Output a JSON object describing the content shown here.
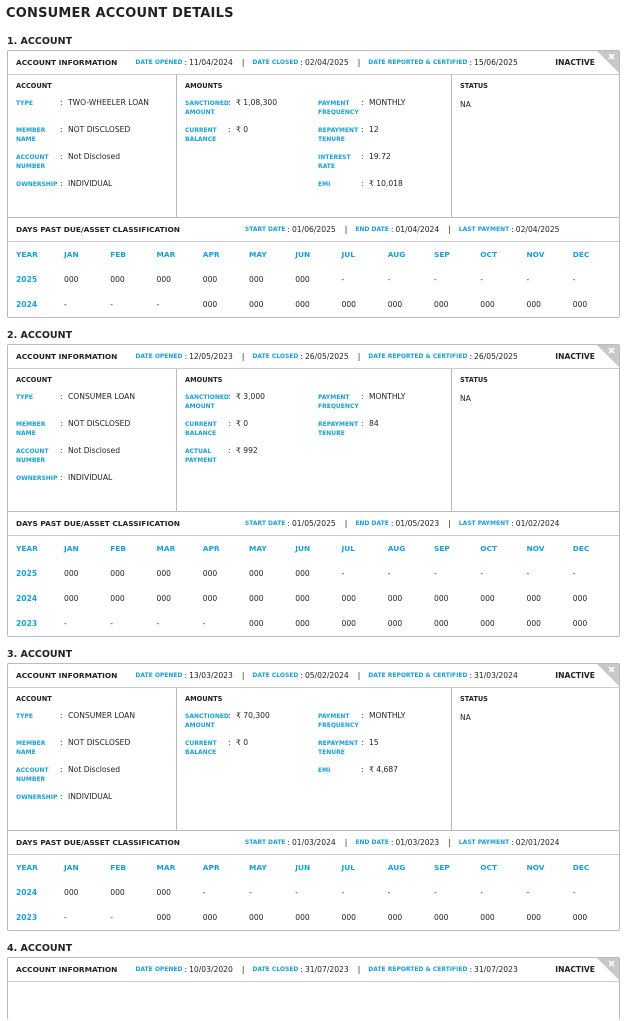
{
  "title": "CONSUMER ACCOUNT DETAILS",
  "separator": ":",
  "divider": "|",
  "dpd_columns": [
    "YEAR",
    "JAN",
    "FEB",
    "MAR",
    "APR",
    "MAY",
    "JUN",
    "JUL",
    "AUG",
    "SEP",
    "OCT",
    "NOV",
    "DEC"
  ],
  "accounts": [
    {
      "heading": "1. ACCOUNT",
      "info": {
        "label": "ACCOUNT INFORMATION",
        "fields": [
          {
            "label": "DATE OPENED",
            "value": "11/04/2024"
          },
          {
            "label": "DATE CLOSED",
            "value": "02/04/2025"
          },
          {
            "label": "DATE REPORTED & CERTIFIED",
            "value": "15/06/2025"
          }
        ],
        "status": "INACTIVE"
      },
      "account": {
        "heading": "ACCOUNT",
        "rows": [
          {
            "label": "TYPE",
            "value": "TWO-WHEELER LOAN"
          },
          {
            "label": "MEMBER NAME",
            "value": "NOT DISCLOSED"
          },
          {
            "label": "ACCOUNT NUMBER",
            "value": "Not Disclosed"
          },
          {
            "label": "OWNERSHIP",
            "value": "INDIVIDUAL"
          }
        ]
      },
      "amounts": {
        "heading": "AMOUNTS",
        "left": [
          {
            "label": "SANCTIONED AMOUNT",
            "value": "₹ 1,08,300"
          },
          {
            "label": "CURRENT BALANCE",
            "value": "₹ 0"
          }
        ],
        "right": [
          {
            "label": "PAYMENT FREQUENCY",
            "value": "MONTHLY"
          },
          {
            "label": "REPAYMENT TENURE",
            "value": "12"
          },
          {
            "label": "INTEREST RATE",
            "value": "19.72"
          },
          {
            "label": "EMI",
            "value": "₹ 10,018"
          }
        ]
      },
      "status": {
        "heading": "STATUS",
        "value": "NA"
      },
      "dpd": {
        "label": "DAYS PAST DUE/ASSET CLASSIFICATION",
        "fields": [
          {
            "label": "START DATE",
            "value": "01/06/2025"
          },
          {
            "label": "END DATE",
            "value": "01/04/2024"
          },
          {
            "label": "LAST PAYMENT",
            "value": "02/04/2025"
          }
        ],
        "rows": [
          [
            "2025",
            "000",
            "000",
            "000",
            "000",
            "000",
            "000",
            "-",
            "-",
            "-",
            "-",
            "-",
            "-"
          ],
          [
            "2024",
            "-",
            "-",
            "-",
            "000",
            "000",
            "000",
            "000",
            "000",
            "000",
            "000",
            "000",
            "000"
          ]
        ]
      }
    },
    {
      "heading": "2. ACCOUNT",
      "info": {
        "label": "ACCOUNT INFORMATION",
        "fields": [
          {
            "label": "DATE OPENED",
            "value": "12/05/2023"
          },
          {
            "label": "DATE CLOSED",
            "value": "26/05/2025"
          },
          {
            "label": "DATE REPORTED & CERTIFIED",
            "value": "26/05/2025"
          }
        ],
        "status": "INACTIVE"
      },
      "account": {
        "heading": "ACCOUNT",
        "rows": [
          {
            "label": "TYPE",
            "value": "CONSUMER LOAN"
          },
          {
            "label": "MEMBER NAME",
            "value": "NOT DISCLOSED"
          },
          {
            "label": "ACCOUNT NUMBER",
            "value": "Not Disclosed"
          },
          {
            "label": "OWNERSHIP",
            "value": "INDIVIDUAL"
          }
        ]
      },
      "amounts": {
        "heading": "AMOUNTS",
        "left": [
          {
            "label": "SANCTIONED AMOUNT",
            "value": "₹ 3,000"
          },
          {
            "label": "CURRENT BALANCE",
            "value": "₹ 0"
          },
          {
            "label": "ACTUAL PAYMENT",
            "value": "₹ 992"
          }
        ],
        "right": [
          {
            "label": "PAYMENT FREQUENCY",
            "value": "MONTHLY"
          },
          {
            "label": "REPAYMENT TENURE",
            "value": "84"
          }
        ]
      },
      "status": {
        "heading": "STATUS",
        "value": "NA"
      },
      "dpd": {
        "label": "DAYS PAST DUE/ASSET CLASSIFICATION",
        "fields": [
          {
            "label": "START DATE",
            "value": "01/05/2025"
          },
          {
            "label": "END DATE",
            "value": "01/05/2023"
          },
          {
            "label": "LAST PAYMENT",
            "value": "01/02/2024"
          }
        ],
        "rows": [
          [
            "2025",
            "000",
            "000",
            "000",
            "000",
            "000",
            "000",
            "-",
            "-",
            "-",
            "-",
            "-",
            "-"
          ],
          [
            "2024",
            "000",
            "000",
            "000",
            "000",
            "000",
            "000",
            "000",
            "000",
            "000",
            "000",
            "000",
            "000"
          ],
          [
            "2023",
            "-",
            "-",
            "-",
            "-",
            "000",
            "000",
            "000",
            "000",
            "000",
            "000",
            "000",
            "000"
          ]
        ]
      }
    },
    {
      "heading": "3. ACCOUNT",
      "info": {
        "label": "ACCOUNT INFORMATION",
        "fields": [
          {
            "label": "DATE OPENED",
            "value": "13/03/2023"
          },
          {
            "label": "DATE CLOSED",
            "value": "05/02/2024"
          },
          {
            "label": "DATE REPORTED & CERTIFIED",
            "value": "31/03/2024"
          }
        ],
        "status": "INACTIVE"
      },
      "account": {
        "heading": "ACCOUNT",
        "rows": [
          {
            "label": "TYPE",
            "value": "CONSUMER LOAN"
          },
          {
            "label": "MEMBER NAME",
            "value": "NOT DISCLOSED"
          },
          {
            "label": "ACCOUNT NUMBER",
            "value": "Not Disclosed"
          },
          {
            "label": "OWNERSHIP",
            "value": "INDIVIDUAL"
          }
        ]
      },
      "amounts": {
        "heading": "AMOUNTS",
        "left": [
          {
            "label": "SANCTIONED AMOUNT",
            "value": "₹ 70,300"
          },
          {
            "label": "CURRENT BALANCE",
            "value": "₹ 0"
          }
        ],
        "right": [
          {
            "label": "PAYMENT FREQUENCY",
            "value": "MONTHLY"
          },
          {
            "label": "REPAYMENT TENURE",
            "value": "15"
          },
          {
            "label": "EMI",
            "value": "₹ 4,687"
          }
        ]
      },
      "status": {
        "heading": "STATUS",
        "value": "NA"
      },
      "dpd": {
        "label": "DAYS PAST DUE/ASSET CLASSIFICATION",
        "fields": [
          {
            "label": "START DATE",
            "value": "01/03/2024"
          },
          {
            "label": "END DATE",
            "value": "01/03/2023"
          },
          {
            "label": "LAST PAYMENT",
            "value": "02/01/2024"
          }
        ],
        "rows": [
          [
            "2024",
            "000",
            "000",
            "000",
            "-",
            "-",
            "-",
            "-",
            "-",
            "-",
            "-",
            "-",
            "-"
          ],
          [
            "2023",
            "-",
            "-",
            "000",
            "000",
            "000",
            "000",
            "000",
            "000",
            "000",
            "000",
            "000",
            "000"
          ]
        ]
      }
    },
    {
      "heading": "4. ACCOUNT",
      "info": {
        "label": "ACCOUNT INFORMATION",
        "fields": [
          {
            "label": "DATE OPENED",
            "value": "10/03/2020"
          },
          {
            "label": "DATE CLOSED",
            "value": "31/07/2023"
          },
          {
            "label": "DATE REPORTED & CERTIFIED",
            "value": "31/07/2023"
          }
        ],
        "status": "INACTIVE"
      }
    }
  ]
}
